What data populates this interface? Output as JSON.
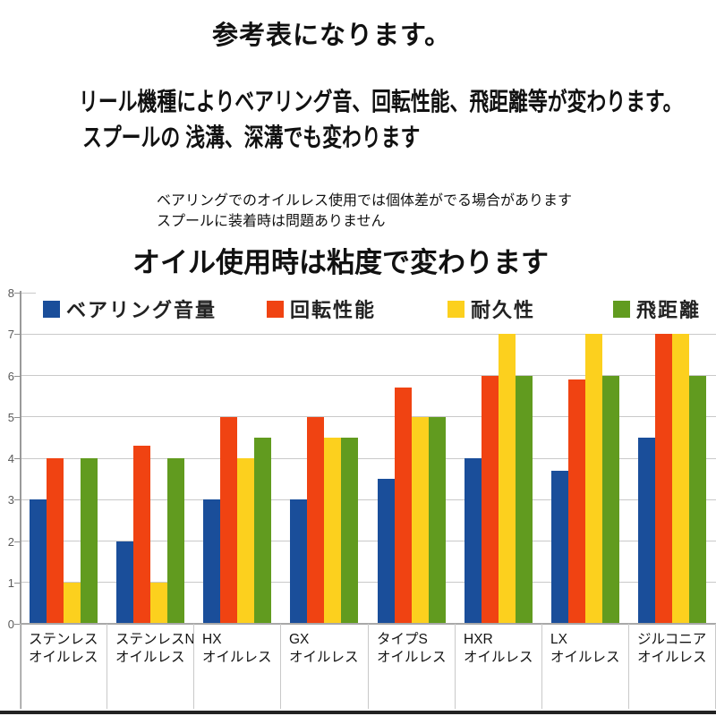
{
  "page": {
    "title": "参考表になります。",
    "subtitle_line1": "リール機種によりベアリング音、回転性能、飛距離等が変わります。",
    "subtitle_line2": "スプールの 浅溝、深溝でも変わります",
    "note_line1": "ベアリングでのオイルレス使用では個体差がでる場合があります",
    "note_line2": "スプールに装着時は問題ありません",
    "emphasis_note": "オイル使用時は粘度で変わります"
  },
  "chart_data": {
    "type": "bar",
    "title": "",
    "xlabel": "",
    "ylabel": "",
    "ylim": [
      0,
      8
    ],
    "ytick_interval": 1,
    "grid": true,
    "legend_position": "top",
    "categories": [
      {
        "line1": "ステンレス",
        "line2": "オイルレス"
      },
      {
        "line1": "ステンレスN",
        "line2": "オイルレス"
      },
      {
        "line1": "HX",
        "line2": "オイルレス"
      },
      {
        "line1": "GX",
        "line2": "オイルレス"
      },
      {
        "line1": "タイプS",
        "line2": "オイルレス"
      },
      {
        "line1": "HXR",
        "line2": "オイルレス"
      },
      {
        "line1": "LX",
        "line2": "オイルレス"
      },
      {
        "line1": "ジルコニア",
        "line2": "オイルレス"
      }
    ],
    "series": [
      {
        "name": "ベアリング音量",
        "color": "#1a4e9a",
        "values": [
          3.0,
          2.0,
          3.0,
          3.0,
          3.5,
          4.0,
          3.7,
          4.5
        ]
      },
      {
        "name": "回転性能",
        "color": "#f04312",
        "values": [
          4.0,
          4.3,
          5.0,
          5.0,
          5.7,
          6.0,
          5.9,
          7.0
        ]
      },
      {
        "name": "耐久性",
        "color": "#fcd01e",
        "values": [
          1.0,
          1.0,
          4.0,
          4.5,
          5.0,
          7.0,
          7.0,
          7.0
        ]
      },
      {
        "name": "飛距離",
        "color": "#619b1f",
        "values": [
          4.0,
          4.0,
          4.5,
          4.5,
          5.0,
          6.0,
          6.0,
          6.0
        ]
      }
    ]
  }
}
